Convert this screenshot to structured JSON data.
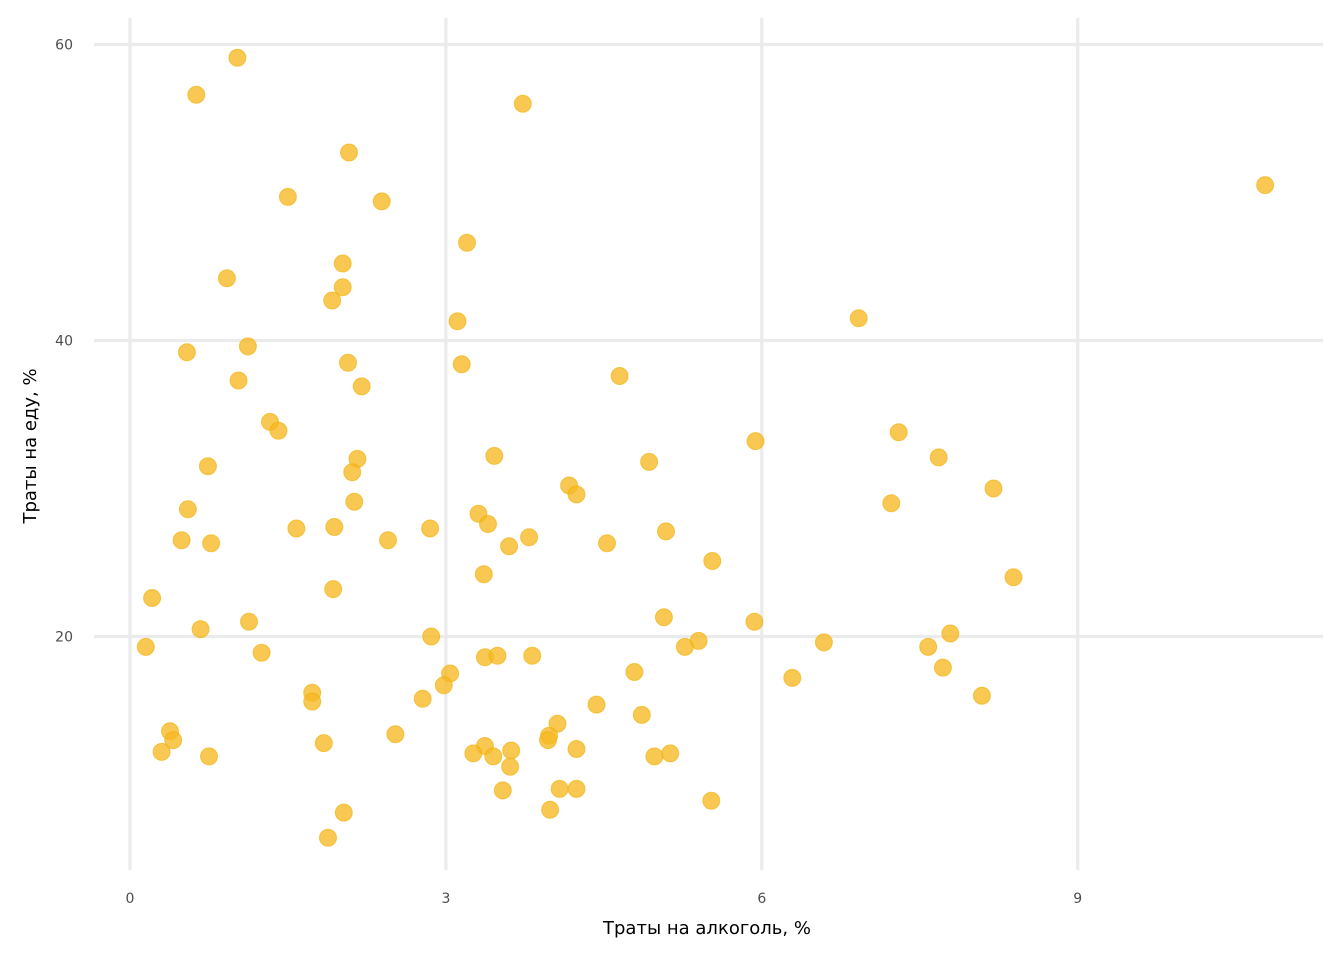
{
  "chart_data": {
    "type": "scatter",
    "title": "",
    "xlabel": "Траты на алкоголь, %",
    "ylabel": "Траты на еду, %",
    "xlim": [
      0,
      11.8
    ],
    "ylim": [
      4.4,
      62
    ],
    "x_ticks": [
      0,
      3,
      6,
      9
    ],
    "y_ticks": [
      20,
      40,
      60
    ],
    "grid": true,
    "legend": "none",
    "point_color": "#f6b822",
    "points": [
      [
        1.02,
        59.1
      ],
      [
        0.63,
        56.6
      ],
      [
        3.73,
        56.0
      ],
      [
        2.08,
        52.7
      ],
      [
        10.78,
        50.5
      ],
      [
        1.5,
        49.7
      ],
      [
        2.39,
        49.4
      ],
      [
        3.2,
        46.6
      ],
      [
        2.02,
        45.2
      ],
      [
        0.92,
        44.2
      ],
      [
        2.02,
        43.6
      ],
      [
        1.92,
        42.7
      ],
      [
        3.11,
        41.3
      ],
      [
        6.92,
        41.5
      ],
      [
        1.12,
        39.6
      ],
      [
        0.54,
        39.2
      ],
      [
        2.07,
        38.5
      ],
      [
        3.15,
        38.4
      ],
      [
        4.65,
        37.6
      ],
      [
        1.03,
        37.3
      ],
      [
        2.2,
        36.9
      ],
      [
        1.33,
        34.5
      ],
      [
        1.41,
        33.9
      ],
      [
        7.3,
        33.8
      ],
      [
        5.94,
        33.2
      ],
      [
        3.46,
        32.2
      ],
      [
        7.68,
        32.1
      ],
      [
        2.16,
        32.0
      ],
      [
        4.93,
        31.8
      ],
      [
        0.74,
        31.5
      ],
      [
        2.11,
        31.1
      ],
      [
        4.17,
        30.2
      ],
      [
        8.2,
        30.0
      ],
      [
        4.24,
        29.6
      ],
      [
        2.13,
        29.1
      ],
      [
        7.23,
        29.0
      ],
      [
        0.55,
        28.6
      ],
      [
        3.31,
        28.3
      ],
      [
        3.4,
        27.6
      ],
      [
        1.58,
        27.3
      ],
      [
        1.94,
        27.4
      ],
      [
        2.85,
        27.3
      ],
      [
        5.09,
        27.1
      ],
      [
        3.79,
        26.7
      ],
      [
        0.49,
        26.5
      ],
      [
        2.45,
        26.5
      ],
      [
        4.53,
        26.3
      ],
      [
        0.77,
        26.3
      ],
      [
        3.6,
        26.1
      ],
      [
        5.53,
        25.1
      ],
      [
        3.36,
        24.2
      ],
      [
        8.39,
        24.0
      ],
      [
        1.93,
        23.2
      ],
      [
        0.21,
        22.6
      ],
      [
        5.07,
        21.3
      ],
      [
        1.13,
        21.0
      ],
      [
        5.93,
        21.0
      ],
      [
        0.67,
        20.5
      ],
      [
        7.79,
        20.2
      ],
      [
        2.86,
        20.0
      ],
      [
        5.4,
        19.7
      ],
      [
        6.59,
        19.6
      ],
      [
        5.27,
        19.3
      ],
      [
        0.15,
        19.3
      ],
      [
        7.58,
        19.3
      ],
      [
        1.25,
        18.9
      ],
      [
        3.37,
        18.6
      ],
      [
        3.49,
        18.7
      ],
      [
        3.82,
        18.7
      ],
      [
        7.72,
        17.9
      ],
      [
        4.79,
        17.6
      ],
      [
        3.04,
        17.5
      ],
      [
        6.29,
        17.2
      ],
      [
        2.98,
        16.7
      ],
      [
        1.73,
        16.2
      ],
      [
        8.09,
        16.0
      ],
      [
        2.78,
        15.8
      ],
      [
        1.73,
        15.6
      ],
      [
        4.43,
        15.4
      ],
      [
        4.86,
        14.7
      ],
      [
        4.06,
        14.1
      ],
      [
        0.38,
        13.6
      ],
      [
        3.98,
        13.3
      ],
      [
        2.52,
        13.4
      ],
      [
        0.41,
        13.0
      ],
      [
        3.97,
        13.0
      ],
      [
        1.84,
        12.8
      ],
      [
        3.37,
        12.6
      ],
      [
        4.24,
        12.4
      ],
      [
        3.62,
        12.3
      ],
      [
        0.3,
        12.2
      ],
      [
        3.26,
        12.1
      ],
      [
        3.45,
        11.9
      ],
      [
        0.75,
        11.9
      ],
      [
        5.13,
        12.1
      ],
      [
        4.98,
        11.9
      ],
      [
        3.61,
        11.2
      ],
      [
        4.08,
        9.7
      ],
      [
        4.24,
        9.7
      ],
      [
        3.54,
        9.6
      ],
      [
        5.52,
        8.9
      ],
      [
        3.99,
        8.3
      ],
      [
        2.03,
        8.1
      ],
      [
        1.88,
        6.4
      ]
    ]
  }
}
